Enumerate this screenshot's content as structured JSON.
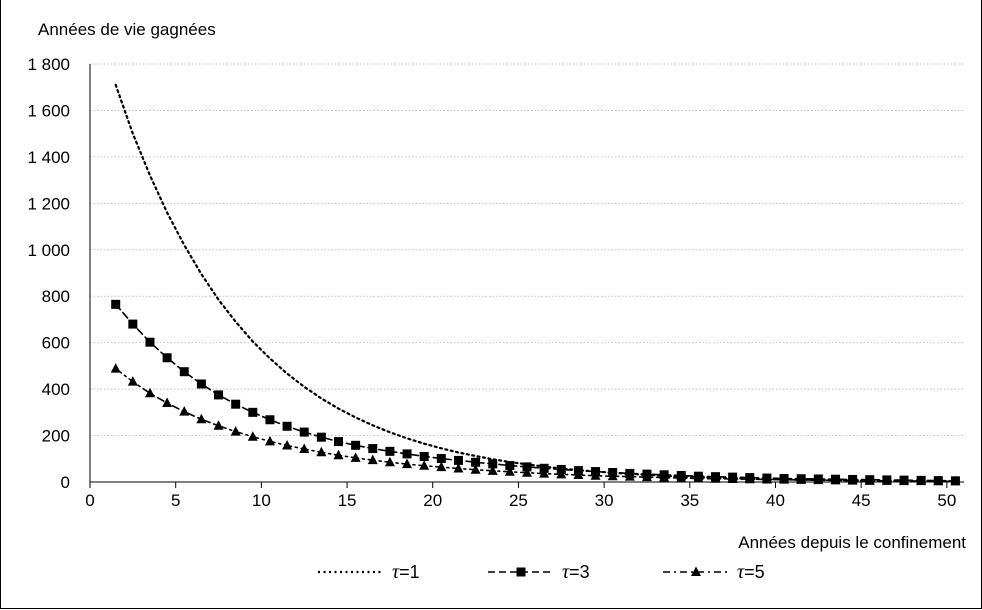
{
  "chart_data": {
    "type": "line",
    "title": "",
    "ylabel": "Années de vie gagnées",
    "xlabel": "Années depuis le confinement",
    "xlim": [
      0,
      51
    ],
    "ylim": [
      0,
      1800
    ],
    "xticks": [
      0,
      5,
      10,
      15,
      20,
      25,
      30,
      35,
      40,
      45,
      50
    ],
    "yticks": [
      0,
      200,
      400,
      600,
      800,
      1000,
      1200,
      1400,
      1600,
      1800
    ],
    "ytick_labels": [
      "0",
      "200",
      "400",
      "600",
      "800",
      "1 000",
      "1 200",
      "1 400",
      "1 600",
      "1 800"
    ],
    "grid": true,
    "legend_position": "bottom",
    "x": [
      1.5,
      2.5,
      3.5,
      4.5,
      5.5,
      6.5,
      7.5,
      8.5,
      9.5,
      10.5,
      11.5,
      12.5,
      13.5,
      14.5,
      15.5,
      16.5,
      17.5,
      18.5,
      19.5,
      20.5,
      21.5,
      22.5,
      23.5,
      24.5,
      25.5,
      26.5,
      27.5,
      28.5,
      29.5,
      30.5,
      31.5,
      32.5,
      33.5,
      34.5,
      35.5,
      36.5,
      37.5,
      38.5,
      39.5,
      40.5,
      41.5,
      42.5,
      43.5,
      44.5,
      45.5,
      46.5,
      47.5,
      48.5,
      49.5,
      50.5
    ],
    "series": [
      {
        "name": "τ=1",
        "style": "dotted",
        "marker": "none",
        "values": [
          1710,
          1500,
          1320,
          1160,
          1020,
          895,
          785,
          690,
          605,
          532,
          467,
          410,
          360,
          316,
          278,
          244,
          214,
          188,
          165,
          145,
          127,
          112,
          98,
          86,
          76,
          66,
          58,
          51,
          45,
          40,
          35,
          31,
          27,
          24,
          21,
          18,
          16,
          14,
          12,
          11,
          10,
          9,
          8,
          7,
          6,
          5,
          4,
          4,
          3,
          3
        ]
      },
      {
        "name": "τ=3",
        "style": "dashed",
        "marker": "square",
        "values": [
          765,
          680,
          602,
          535,
          475,
          422,
          375,
          335,
          300,
          268,
          240,
          215,
          193,
          174,
          158,
          144,
          132,
          121,
          110,
          101,
          93,
          85,
          78,
          71,
          65,
          59,
          54,
          49,
          45,
          41,
          37,
          34,
          31,
          28,
          25,
          23,
          21,
          19,
          17,
          15,
          14,
          13,
          12,
          11,
          10,
          9,
          8,
          7,
          6,
          5
        ]
      },
      {
        "name": "τ=5",
        "style": "dashdot",
        "marker": "triangle",
        "values": [
          488,
          432,
          382,
          340,
          303,
          270,
          242,
          217,
          195,
          175,
          157,
          142,
          128,
          115,
          104,
          94,
          85,
          77,
          70,
          64,
          58,
          53,
          48,
          44,
          40,
          36,
          33,
          30,
          27,
          25,
          23,
          21,
          19,
          17,
          15,
          14,
          13,
          12,
          11,
          10,
          9,
          8,
          7,
          6,
          5,
          5,
          4,
          4,
          3,
          3
        ]
      }
    ]
  }
}
